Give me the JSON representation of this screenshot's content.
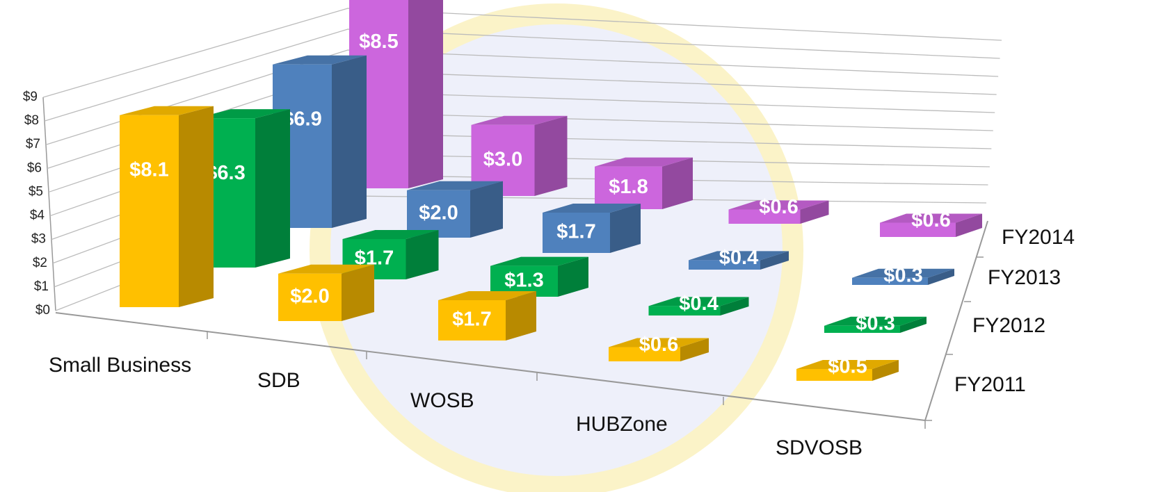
{
  "chart_data": {
    "type": "bar3d",
    "categories": [
      "Small Business",
      "SDB",
      "WOSB",
      "HUBZone",
      "SDVOSB"
    ],
    "series": [
      {
        "name": "FY2011",
        "color": "#ffc000",
        "values": [
          8.1,
          2.0,
          1.7,
          0.6,
          0.5
        ],
        "value_labels": [
          "$8.1",
          "$2.0",
          "$1.7",
          "$0.6",
          "$0.5"
        ]
      },
      {
        "name": "FY2012",
        "color": "#00b050",
        "values": [
          6.3,
          1.7,
          1.3,
          0.4,
          0.3
        ],
        "value_labels": [
          "$6.3",
          "$1.7",
          "$1.3",
          "$0.4",
          "$0.3"
        ]
      },
      {
        "name": "FY2013",
        "color": "#4f81bd",
        "values": [
          6.9,
          2.0,
          1.7,
          0.4,
          0.3
        ],
        "value_labels": [
          "$6.9",
          "$2.0",
          "$1.7",
          "$0.4",
          "$0.3"
        ]
      },
      {
        "name": "FY2014",
        "color": "#cc66dd",
        "values": [
          8.5,
          3.0,
          1.8,
          0.6,
          0.6
        ],
        "value_labels": [
          "$8.5",
          "$3.0",
          "$1.8",
          "$0.6",
          "$0.6"
        ]
      }
    ],
    "ylim": [
      0,
      9
    ],
    "yticks": [
      {
        "value": 0,
        "label": "$0"
      },
      {
        "value": 1,
        "label": "$1"
      },
      {
        "value": 2,
        "label": "$2"
      },
      {
        "value": 3,
        "label": "$3"
      },
      {
        "value": 4,
        "label": "$4"
      },
      {
        "value": 5,
        "label": "$5"
      },
      {
        "value": 6,
        "label": "$6"
      },
      {
        "value": 7,
        "label": "$7"
      },
      {
        "value": 8,
        "label": "$8"
      },
      {
        "value": 9,
        "label": "$9"
      }
    ],
    "grid": true
  }
}
